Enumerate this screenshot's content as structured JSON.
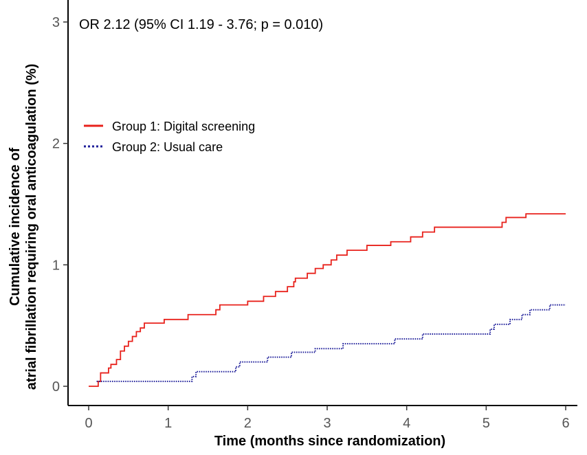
{
  "chart_data": {
    "type": "line",
    "subtype": "step",
    "title": "",
    "annotation": "OR 2.12 (95% CI 1.19 - 3.76; p = 0.010)",
    "xlabel": "Time (months since randomization)",
    "ylabel_line1": "Cumulative incidence of",
    "ylabel_line2": "atrial fibrillation requiring oral anticoagulation (%)",
    "xlim": [
      0,
      6
    ],
    "ylim": [
      0,
      3
    ],
    "x_ticks": [
      0,
      1,
      2,
      3,
      4,
      5,
      6
    ],
    "y_ticks": [
      0,
      1,
      2,
      3
    ],
    "grid": false,
    "legend_position": "upper-left",
    "colors": {
      "group1": "#e8211b",
      "group2": "#1f1f9a"
    },
    "series": [
      {
        "name": "Group 1: Digital screening",
        "style": "solid",
        "color": "#e8211b",
        "points": [
          [
            0,
            0
          ],
          [
            0.12,
            0.04
          ],
          [
            0.15,
            0.11
          ],
          [
            0.25,
            0.15
          ],
          [
            0.28,
            0.18
          ],
          [
            0.35,
            0.22
          ],
          [
            0.4,
            0.29
          ],
          [
            0.45,
            0.33
          ],
          [
            0.5,
            0.37
          ],
          [
            0.55,
            0.41
          ],
          [
            0.6,
            0.45
          ],
          [
            0.65,
            0.48
          ],
          [
            0.7,
            0.52
          ],
          [
            0.95,
            0.55
          ],
          [
            1.25,
            0.59
          ],
          [
            1.6,
            0.63
          ],
          [
            1.65,
            0.67
          ],
          [
            2.0,
            0.7
          ],
          [
            2.2,
            0.74
          ],
          [
            2.35,
            0.78
          ],
          [
            2.5,
            0.82
          ],
          [
            2.58,
            0.86
          ],
          [
            2.6,
            0.89
          ],
          [
            2.75,
            0.93
          ],
          [
            2.85,
            0.97
          ],
          [
            2.95,
            1.0
          ],
          [
            3.05,
            1.04
          ],
          [
            3.12,
            1.08
          ],
          [
            3.25,
            1.12
          ],
          [
            3.5,
            1.16
          ],
          [
            3.8,
            1.19
          ],
          [
            4.05,
            1.23
          ],
          [
            4.2,
            1.27
          ],
          [
            4.35,
            1.31
          ],
          [
            5.2,
            1.35
          ],
          [
            5.25,
            1.39
          ],
          [
            5.5,
            1.42
          ],
          [
            6.0,
            1.42
          ]
        ]
      },
      {
        "name": "Group 2: Usual care",
        "style": "dotted",
        "color": "#1f1f9a",
        "points": [
          [
            0.1,
            0.04
          ],
          [
            1.3,
            0.08
          ],
          [
            1.35,
            0.12
          ],
          [
            1.85,
            0.16
          ],
          [
            1.9,
            0.2
          ],
          [
            2.25,
            0.24
          ],
          [
            2.55,
            0.28
          ],
          [
            2.85,
            0.31
          ],
          [
            3.2,
            0.35
          ],
          [
            3.85,
            0.39
          ],
          [
            4.2,
            0.43
          ],
          [
            5.05,
            0.47
          ],
          [
            5.1,
            0.51
          ],
          [
            5.3,
            0.55
          ],
          [
            5.45,
            0.59
          ],
          [
            5.55,
            0.63
          ],
          [
            5.8,
            0.67
          ],
          [
            6.0,
            0.67
          ]
        ]
      }
    ]
  }
}
